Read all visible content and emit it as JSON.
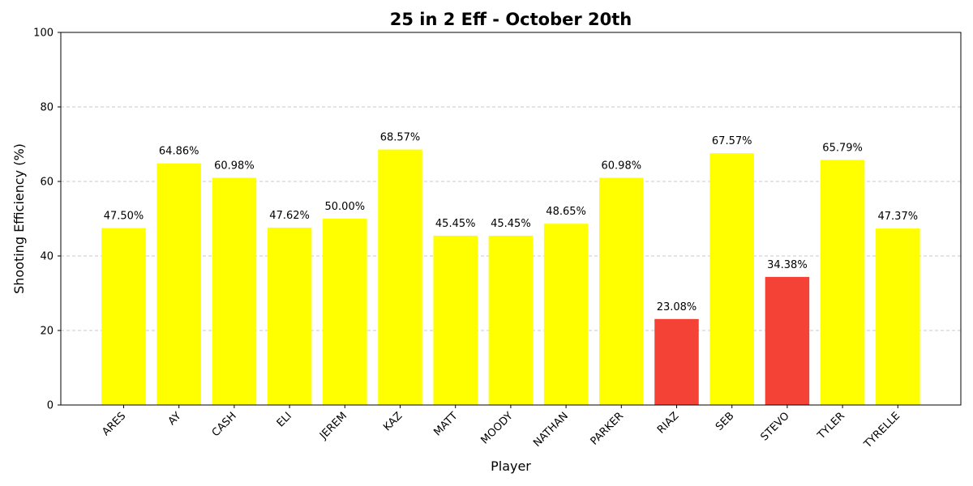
{
  "chart_data": {
    "type": "bar",
    "title": "25 in 2 Eff - October 20th",
    "xlabel": "Player",
    "ylabel": "Shooting Efficiency (%)",
    "ylim": [
      0,
      100
    ],
    "yticks": [
      0,
      20,
      40,
      60,
      80,
      100
    ],
    "grid": "y-dashed",
    "categories": [
      "ARES",
      "AY",
      "CASH",
      "ELI",
      "JEREM",
      "KAZ",
      "MATT",
      "MOODY",
      "NATHAN",
      "PARKER",
      "RIAZ",
      "SEB",
      "STEVO",
      "TYLER",
      "TYRELLE"
    ],
    "values": [
      47.5,
      64.86,
      60.98,
      47.62,
      50.0,
      68.57,
      45.45,
      45.45,
      48.65,
      60.98,
      23.08,
      67.57,
      34.38,
      65.79,
      47.37
    ],
    "data_labels": [
      "47.50%",
      "64.86%",
      "60.98%",
      "47.62%",
      "50.00%",
      "68.57%",
      "45.45%",
      "45.45%",
      "48.65%",
      "60.98%",
      "23.08%",
      "67.57%",
      "34.38%",
      "65.79%",
      "47.37%"
    ],
    "colors": {
      "default_bar": "#ffff00",
      "low_bar": "#f44336"
    },
    "low_categories": [
      "RIAZ",
      "STEVO"
    ]
  }
}
